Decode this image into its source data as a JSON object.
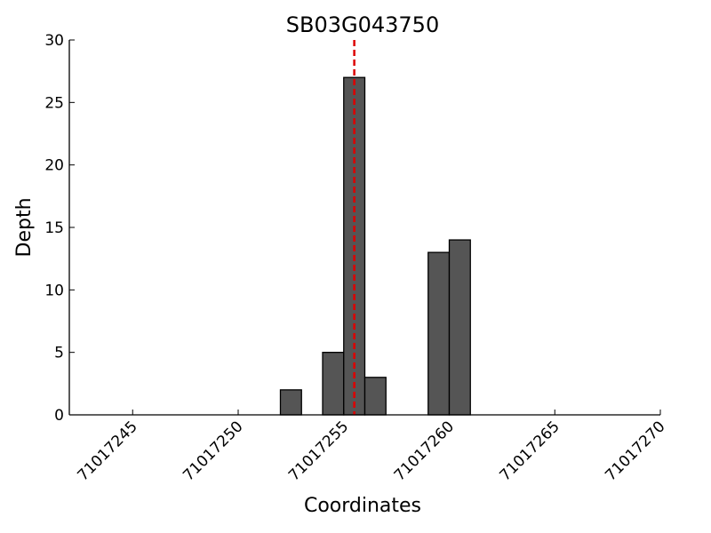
{
  "chart_data": {
    "type": "histogram",
    "title": "SB03G043750",
    "x_label": "Coordinates",
    "y_label": "Depth",
    "bins": [
      71017252,
      71017253,
      71017254,
      71017255,
      71017256,
      71017257,
      71017258,
      71017259,
      71017260,
      71017261
    ],
    "values": [
      2,
      0,
      5,
      27,
      3,
      0,
      0,
      13,
      14
    ],
    "color": "#555555",
    "edge_color": "#000000",
    "xlim": [
      71017242,
      71017270
    ],
    "xticks": [
      71017245,
      71017250,
      71017255,
      71017260,
      71017265,
      71017270
    ],
    "ylim": [
      0,
      30
    ],
    "yticks": [
      0,
      5,
      10,
      15,
      20,
      25,
      30
    ],
    "vline": {
      "x": 71017255.5,
      "color": "#dd0000",
      "style": "dashed"
    }
  }
}
